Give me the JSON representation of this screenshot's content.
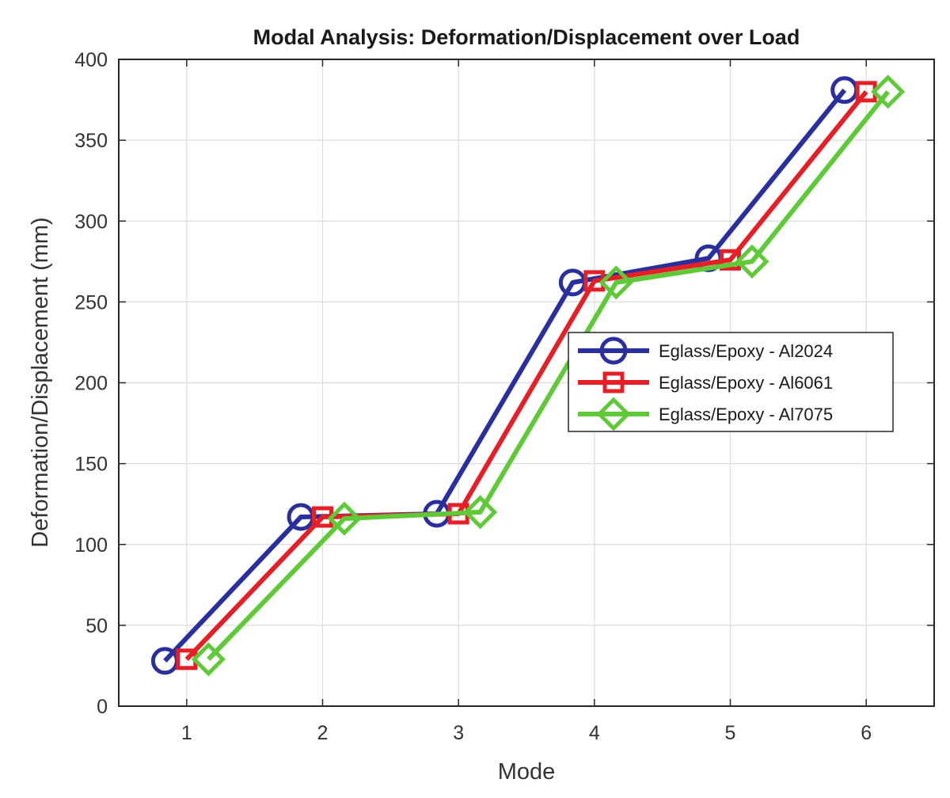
{
  "chart_data": {
    "type": "line",
    "title": "Modal Analysis: Deformation/Displacement over Load",
    "xlabel": "Mode",
    "ylabel": "Deformation/Displacement (mm)",
    "x": [
      1,
      2,
      3,
      4,
      5,
      6
    ],
    "x_tick_labels": [
      "1",
      "2",
      "3",
      "4",
      "5",
      "6"
    ],
    "xlim": [
      0.5,
      6.5
    ],
    "ylim": [
      0,
      400
    ],
    "y_ticks": [
      0,
      50,
      100,
      150,
      200,
      250,
      300,
      350,
      400
    ],
    "y_tick_labels": [
      "0",
      "50",
      "100",
      "150",
      "200",
      "250",
      "300",
      "350",
      "400"
    ],
    "grid": true,
    "legend_position": "center-right",
    "series": [
      {
        "name": "Eglass/Epoxy - Al2024",
        "color": "#2a2f9e",
        "marker": "circle",
        "values": [
          28,
          117,
          119,
          262,
          277,
          381
        ]
      },
      {
        "name": "Eglass/Epoxy - Al6061",
        "color": "#e41f26",
        "marker": "square",
        "values": [
          29,
          117,
          119,
          263,
          276,
          380
        ]
      },
      {
        "name": "Eglass/Epoxy - Al7075",
        "color": "#5fc938",
        "marker": "diamond",
        "values": [
          29,
          116,
          120,
          262,
          275,
          380
        ]
      }
    ]
  }
}
